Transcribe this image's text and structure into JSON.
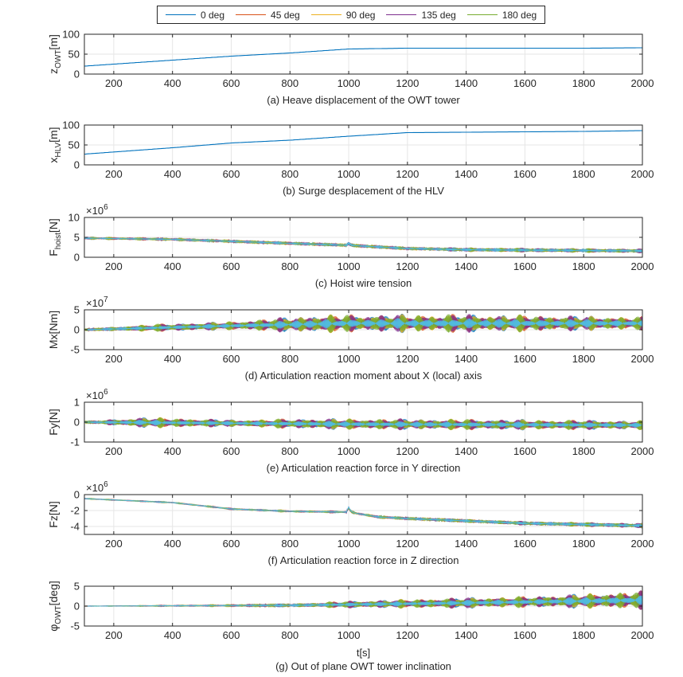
{
  "colors": {
    "0 deg": "#0072BD",
    "45 deg": "#D95319",
    "90 deg": "#EDB120",
    "135 deg": "#7E2F8E",
    "180 deg": "#77AC30",
    "noise_top": "#4DBEEE"
  },
  "legend": {
    "items": [
      "0 deg",
      "45 deg",
      "90 deg",
      "135 deg",
      "180 deg"
    ]
  },
  "xlabel": "t[s]",
  "chart_data": [
    {
      "type": "line",
      "caption": "(a) Heave displacement of the OWT tower",
      "ylabel_main": "z",
      "ylabel_sub": "OWT",
      "ylabel_unit": "[m]",
      "exponent": "",
      "xlim": [
        100,
        2000
      ],
      "ylim": [
        0,
        100
      ],
      "xticks": [
        200,
        400,
        600,
        800,
        1000,
        1200,
        1400,
        1600,
        1800,
        2000
      ],
      "yticks": [
        0,
        50,
        100
      ],
      "ytick_labels": [
        "0",
        "50",
        "100"
      ],
      "grid": true,
      "kind": "trend",
      "series": [
        {
          "name": "0 deg",
          "x": [
            100,
            400,
            600,
            800,
            1000,
            1200,
            1400,
            1600,
            1800,
            2000
          ],
          "y": [
            20,
            35,
            45,
            53,
            63,
            65,
            65,
            65,
            65,
            66
          ]
        }
      ]
    },
    {
      "type": "line",
      "caption": "(b) Surge desplacement of the HLV",
      "ylabel_main": "x",
      "ylabel_sub": "HLV",
      "ylabel_unit": "[m]",
      "exponent": "",
      "xlim": [
        100,
        2000
      ],
      "ylim": [
        0,
        100
      ],
      "xticks": [
        200,
        400,
        600,
        800,
        1000,
        1200,
        1400,
        1600,
        1800,
        2000
      ],
      "yticks": [
        0,
        50,
        100
      ],
      "ytick_labels": [
        "0",
        "50",
        "100"
      ],
      "grid": true,
      "kind": "trend",
      "series": [
        {
          "name": "0 deg",
          "x": [
            100,
            400,
            600,
            800,
            1000,
            1200,
            1400,
            1600,
            1800,
            2000
          ],
          "y": [
            27,
            43,
            55,
            62,
            72,
            81,
            82,
            83,
            84,
            86
          ]
        }
      ]
    },
    {
      "type": "line",
      "caption": "(c) Hoist wire tension",
      "ylabel_main": "F",
      "ylabel_sub": "hoist",
      "ylabel_unit": "[N]",
      "exponent": "6",
      "xlim": [
        100,
        2000
      ],
      "ylim": [
        0,
        10
      ],
      "xticks": [
        200,
        400,
        600,
        800,
        1000,
        1200,
        1400,
        1600,
        1800,
        2000
      ],
      "yticks": [
        0,
        5,
        10
      ],
      "ytick_labels": [
        "0",
        "5",
        "10"
      ],
      "grid": true,
      "kind": "noise",
      "base": {
        "x": [
          100,
          400,
          600,
          800,
          1000,
          1200,
          1400,
          1600,
          1800,
          2000
        ],
        "y": [
          4.8,
          4.5,
          4.0,
          3.5,
          3.0,
          2.2,
          1.9,
          1.8,
          1.7,
          1.6
        ]
      },
      "amplitude": {
        "x": [
          100,
          1000,
          1200,
          1400,
          2000
        ],
        "y": [
          0.2,
          0.4,
          0.4,
          0.6,
          0.6
        ]
      },
      "spikes": [
        {
          "x": 1000,
          "y": 3.6
        }
      ]
    },
    {
      "type": "line",
      "caption": "(d) Articulation reaction moment about X (local) axis",
      "ylabel_main": "Mx[Nm]",
      "ylabel_sub": "",
      "ylabel_unit": "",
      "exponent": "7",
      "xlim": [
        100,
        2000
      ],
      "ylim": [
        -5,
        5
      ],
      "xticks": [
        200,
        400,
        600,
        800,
        1000,
        1200,
        1400,
        1600,
        1800,
        2000
      ],
      "yticks": [
        -5,
        0,
        5
      ],
      "ytick_labels": [
        "-5",
        "0",
        "5"
      ],
      "grid": true,
      "kind": "noise",
      "base": {
        "x": [
          100,
          600,
          1000,
          1400,
          2000
        ],
        "y": [
          0,
          1.0,
          1.6,
          1.6,
          1.6
        ]
      },
      "amplitude": {
        "x": [
          100,
          300,
          600,
          900,
          1000,
          1400,
          2000
        ],
        "y": [
          0.2,
          1.0,
          1.2,
          2.5,
          2.4,
          2.5,
          1.8
        ]
      },
      "spikes": []
    },
    {
      "type": "line",
      "caption": "(e) Articulation reaction force in Y direction",
      "ylabel_main": "Fy[N]",
      "ylabel_sub": "",
      "ylabel_unit": "",
      "exponent": "6",
      "xlim": [
        100,
        2000
      ],
      "ylim": [
        -1,
        1
      ],
      "xticks": [
        200,
        400,
        600,
        800,
        1000,
        1200,
        1400,
        1600,
        1800,
        2000
      ],
      "yticks": [
        -1,
        0,
        1
      ],
      "ytick_labels": [
        "-1",
        "0",
        "1"
      ],
      "grid": true,
      "kind": "noise",
      "base": {
        "x": [
          100,
          1000,
          2000
        ],
        "y": [
          0,
          -0.1,
          -0.15
        ]
      },
      "amplitude": {
        "x": [
          100,
          300,
          600,
          900,
          1400,
          2000
        ],
        "y": [
          0.05,
          0.3,
          0.2,
          0.3,
          0.3,
          0.25
        ]
      },
      "spikes": []
    },
    {
      "type": "line",
      "caption": "(f) Articulation reaction force in Z direction",
      "ylabel_main": "Fz[N]",
      "ylabel_sub": "",
      "ylabel_unit": "",
      "exponent": "6",
      "xlim": [
        100,
        2000
      ],
      "ylim": [
        -5,
        0
      ],
      "xticks": [
        200,
        400,
        600,
        800,
        1000,
        1200,
        1400,
        1600,
        1800,
        2000
      ],
      "yticks": [
        -4,
        -2,
        0
      ],
      "ytick_labels": [
        "-4",
        "-2",
        "0"
      ],
      "grid": true,
      "kind": "noise",
      "base": {
        "x": [
          100,
          400,
          600,
          800,
          1000,
          1100,
          1200,
          1400,
          1600,
          2000
        ],
        "y": [
          -0.5,
          -1.0,
          -1.8,
          -2.1,
          -2.2,
          -2.8,
          -3.0,
          -3.3,
          -3.6,
          -3.9
        ]
      },
      "amplitude": {
        "x": [
          100,
          1000,
          1400,
          2000
        ],
        "y": [
          0.05,
          0.1,
          0.25,
          0.35
        ]
      },
      "spikes": [
        {
          "x": 1000,
          "y": -1.5
        }
      ]
    },
    {
      "type": "line",
      "caption": "(g) Out of plane OWT tower inclination",
      "ylabel_main": "φ",
      "ylabel_sub": "OWT",
      "ylabel_unit": "[deg]",
      "exponent": "",
      "xlim": [
        100,
        2000
      ],
      "ylim": [
        -5,
        5
      ],
      "xticks": [
        200,
        400,
        600,
        800,
        1000,
        1200,
        1400,
        1600,
        1800,
        2000
      ],
      "yticks": [
        -5,
        0,
        5
      ],
      "ytick_labels": [
        "-5",
        "0",
        "5"
      ],
      "grid": true,
      "kind": "noise",
      "base": {
        "x": [
          100,
          800,
          1400,
          2000
        ],
        "y": [
          0,
          0.2,
          0.8,
          1.5
        ]
      },
      "amplitude": {
        "x": [
          100,
          600,
          800,
          1000,
          1400,
          1600,
          2000
        ],
        "y": [
          0.05,
          0.2,
          0.5,
          1.0,
          1.5,
          1.5,
          2.5
        ]
      },
      "spikes": []
    }
  ]
}
